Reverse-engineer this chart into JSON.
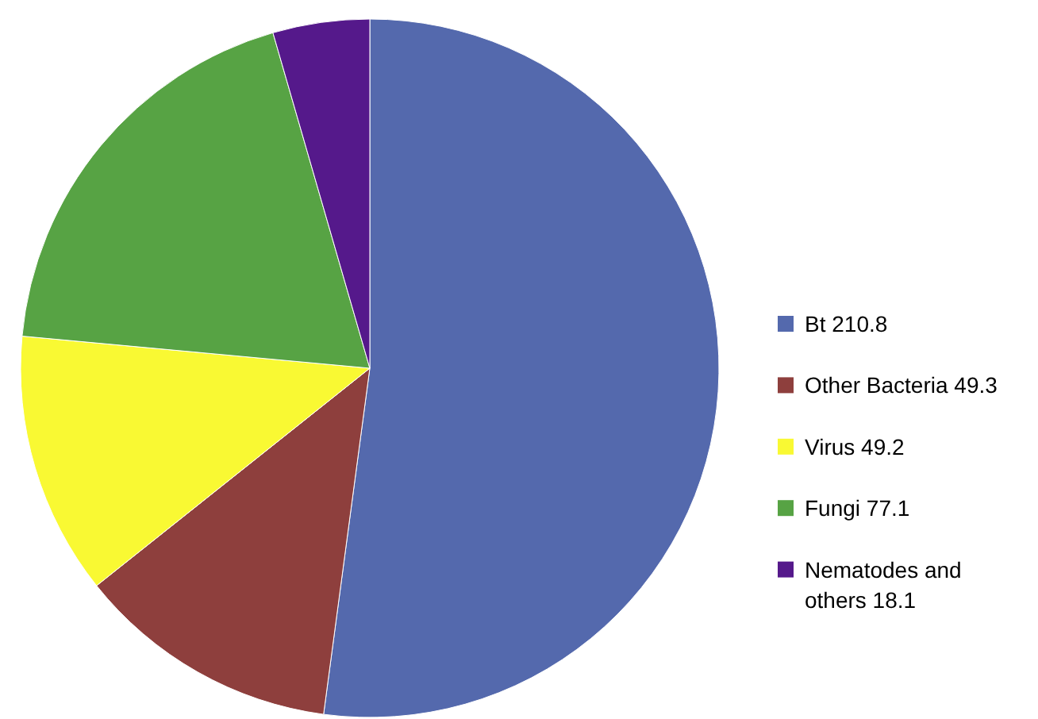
{
  "chart_data": {
    "type": "pie",
    "categories": [
      "Bt 210.8",
      "Other Bacteria 49.3",
      "Virus 49.2",
      "Fungi 77.1",
      "Nematodes and others 18.1"
    ],
    "values": [
      210.8,
      49.3,
      49.2,
      77.1,
      18.1
    ],
    "colors": [
      "#5469ad",
      "#8e3f3d",
      "#f9f933",
      "#57a344",
      "#55198b"
    ],
    "legend": "right"
  }
}
